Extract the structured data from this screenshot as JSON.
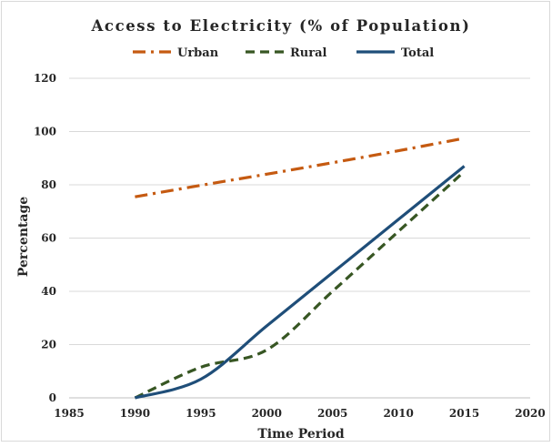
{
  "chart_data": {
    "type": "line",
    "title": "Access to Electricity (% of Population)",
    "xlabel": "Time Period",
    "ylabel": "Percentage",
    "xlim": [
      1985,
      2020
    ],
    "ylim": [
      0,
      120
    ],
    "x_ticks": [
      1985,
      1990,
      1995,
      2000,
      2005,
      2010,
      2015,
      2020
    ],
    "y_ticks": [
      0,
      20,
      40,
      60,
      80,
      100,
      120
    ],
    "grid": "horizontal",
    "legend_position": "top",
    "series": [
      {
        "name": "Urban",
        "color": "#C55A11",
        "style": "dash-dot",
        "x": [
          1990,
          1995,
          2000,
          2005,
          2010,
          2015
        ],
        "y": [
          75.5,
          79.8,
          84.0,
          88.3,
          92.8,
          97.5
        ]
      },
      {
        "name": "Rural",
        "color": "#375623",
        "style": "dashed",
        "x": [
          1990,
          1995,
          2000,
          2005,
          2010,
          2015
        ],
        "y": [
          0,
          11.5,
          18.0,
          40.0,
          62.5,
          85.0
        ]
      },
      {
        "name": "Total",
        "color": "#1F4E79",
        "style": "solid",
        "x": [
          1990,
          1995,
          2000,
          2005,
          2010,
          2015
        ],
        "y": [
          0,
          7.0,
          27.0,
          47.0,
          67.0,
          87.0
        ]
      }
    ]
  }
}
